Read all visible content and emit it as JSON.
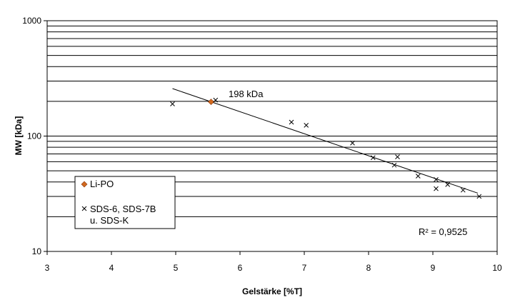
{
  "chart_data": {
    "type": "scatter",
    "xlabel": "Gelstärke [%T]",
    "ylabel": "MW [kDa]",
    "xlim": [
      3,
      10
    ],
    "ylim": [
      10,
      1000
    ],
    "y_scale": "log",
    "x_ticks": [
      "3",
      "4",
      "5",
      "6",
      "7",
      "8",
      "9",
      "10"
    ],
    "y_ticks": [
      "10",
      "100",
      "1000"
    ],
    "grid": "horizontal log gridlines",
    "legend_position": "left, inside plot",
    "series": [
      {
        "name": "Li-PO",
        "marker": "diamond",
        "color": "#d2691e",
        "points": [
          [
            5.55,
            198
          ]
        ]
      },
      {
        "name": "SDS-6, SDS-7B u. SDS-K",
        "marker": "x",
        "color": "#000000",
        "points": [
          [
            4.95,
            190
          ],
          [
            5.62,
            205
          ],
          [
            6.8,
            132
          ],
          [
            7.03,
            124
          ],
          [
            7.75,
            87
          ],
          [
            8.07,
            65
          ],
          [
            8.45,
            66
          ],
          [
            8.4,
            56
          ],
          [
            8.77,
            45
          ],
          [
            9.05,
            42
          ],
          [
            9.05,
            35
          ],
          [
            9.23,
            38
          ],
          [
            9.47,
            34
          ],
          [
            9.72,
            30
          ]
        ]
      }
    ],
    "trendline": {
      "type": "exponential",
      "x_start": 4.95,
      "y_start": 258,
      "x_end": 9.7,
      "y_end": 32
    },
    "annotations": {
      "point_label": "198 kDa",
      "r_squared": "R² = 0,9525"
    },
    "legend": {
      "item1": "Li-PO",
      "item2_line1": "SDS-6, SDS-7B",
      "item2_line2": "u. SDS-K"
    }
  }
}
